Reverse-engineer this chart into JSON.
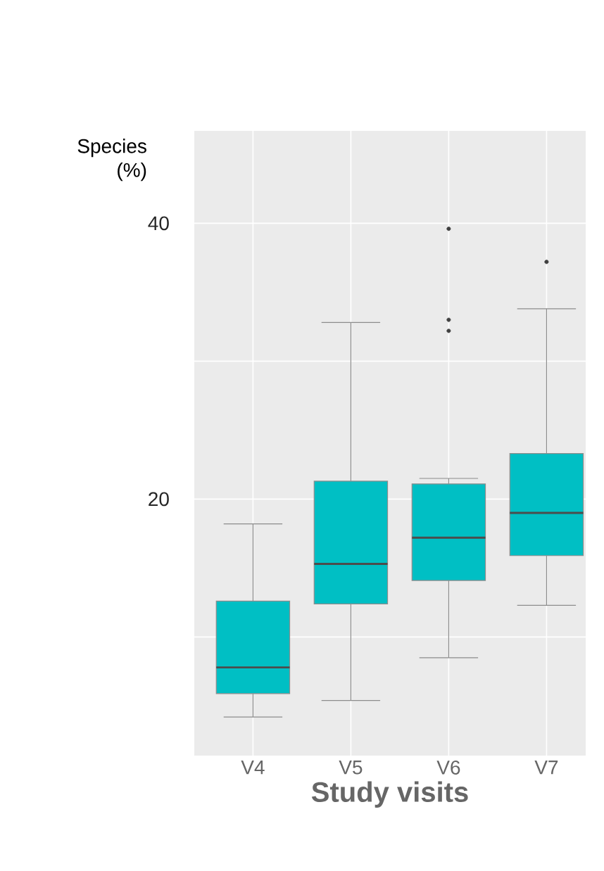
{
  "chart_data": {
    "type": "box",
    "categories": [
      "V4",
      "V5",
      "V6",
      "V7"
    ],
    "boxes": [
      {
        "low": 4.2,
        "q1": 5.9,
        "median": 7.8,
        "q3": 12.6,
        "high": 18.2
      },
      {
        "low": 5.4,
        "q1": 12.4,
        "median": 15.3,
        "q3": 21.3,
        "high": 32.8
      },
      {
        "low": 8.5,
        "q1": 14.1,
        "median": 17.2,
        "q3": 21.1,
        "high": 21.5,
        "outliers": [
          39.6,
          33.0,
          32.2
        ]
      },
      {
        "low": 12.3,
        "q1": 15.9,
        "median": 19.0,
        "q3": 23.3,
        "high": 33.8,
        "outliers": [
          37.2
        ]
      }
    ],
    "color": "#00bfc4",
    "xlabel": "Study visits",
    "ylabel": "Species (%)",
    "ylim": [
      1.4,
      46.7
    ],
    "yticks": [
      {
        "value": 10,
        "label": null
      },
      20,
      {
        "value": 30,
        "label": null
      },
      40
    ],
    "grid": true
  }
}
